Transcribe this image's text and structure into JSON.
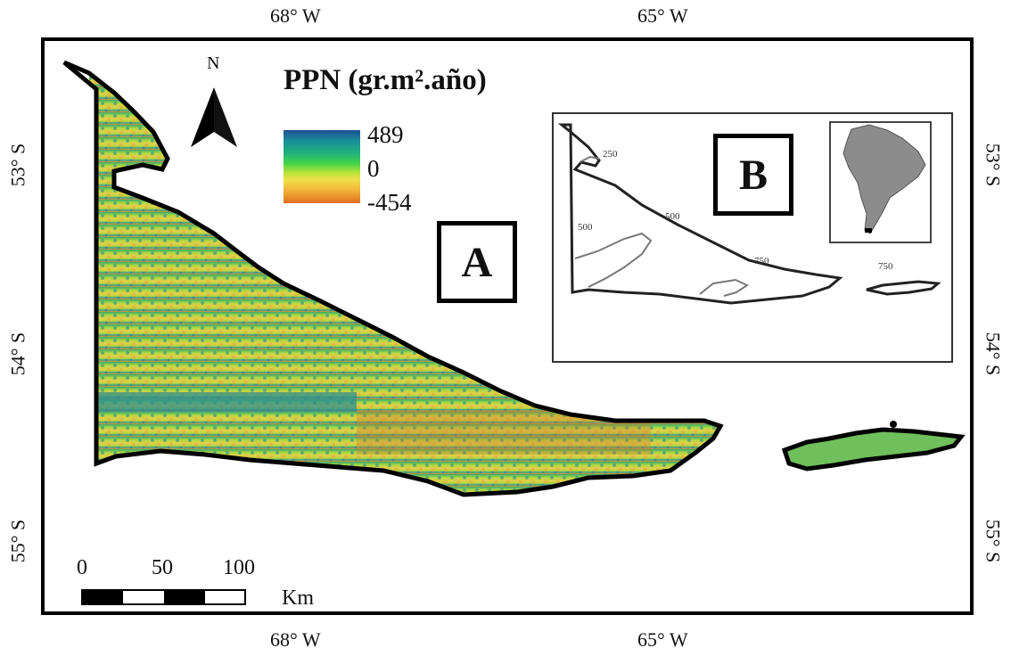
{
  "legend": {
    "title": "PPN (gr.m².año)",
    "max": "489",
    "mid": "0",
    "min": "-454",
    "colors": [
      "#1c4f93",
      "#1a8f9a",
      "#21b37a",
      "#3fd34a",
      "#b6e33a",
      "#f0e04a",
      "#f2b53a",
      "#e06f1f"
    ]
  },
  "north_arrow": {
    "label": "N"
  },
  "axes": {
    "longitude_ticks": [
      "68° W",
      "65° W"
    ],
    "latitude_ticks": [
      "53° S",
      "54° S",
      "55° S"
    ]
  },
  "panels": {
    "a": "A",
    "b": "B"
  },
  "inset": {
    "contours": [
      "250",
      "500",
      "500",
      "750",
      "750"
    ]
  },
  "scale_bar": {
    "labels": [
      "0",
      "50",
      "100"
    ],
    "unit": "Km"
  }
}
